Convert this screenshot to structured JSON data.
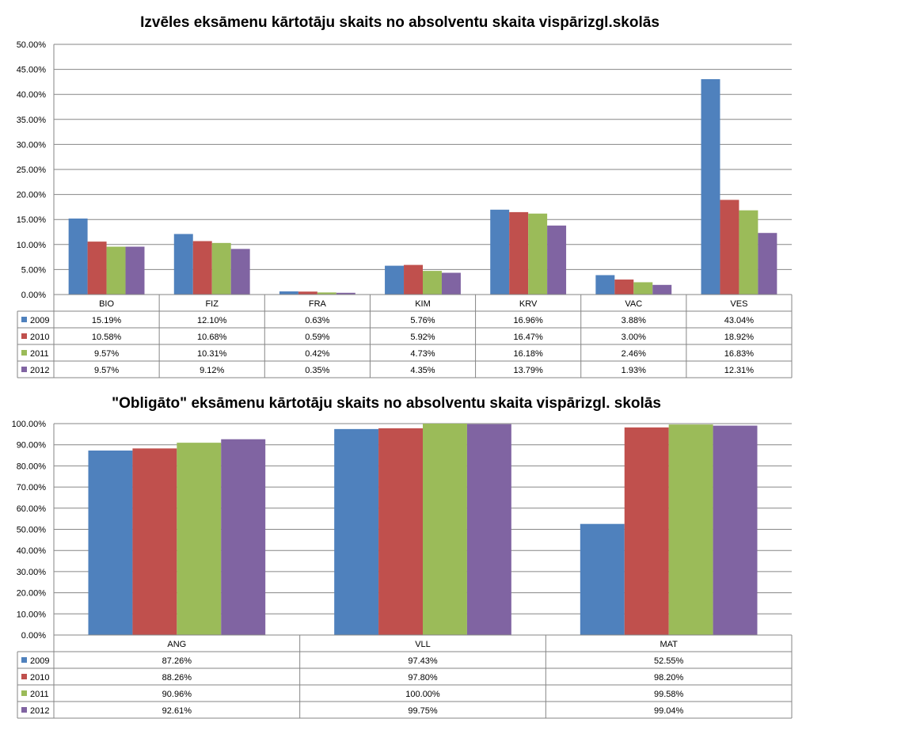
{
  "colors": {
    "2009": "#4f81bd",
    "2010": "#c0504d",
    "2011": "#9bbb59",
    "2012": "#8064a2",
    "grid": "#868686"
  },
  "chart_data": [
    {
      "type": "bar",
      "title": "Izvēles eksāmenu kārtotāju skaits no absolventu skaita vispārizgl.skolās",
      "categories": [
        "BIO",
        "FIZ",
        "FRA",
        "KIM",
        "KRV",
        "VAC",
        "VES"
      ],
      "ylim": [
        0,
        50
      ],
      "yticks": [
        "0.00%",
        "5.00%",
        "10.00%",
        "15.00%",
        "20.00%",
        "25.00%",
        "30.00%",
        "35.00%",
        "40.00%",
        "45.00%",
        "50.00%"
      ],
      "grid": true,
      "legend": "data-table",
      "series": [
        {
          "name": "2009",
          "values": [
            15.19,
            12.1,
            0.63,
            5.76,
            16.96,
            3.88,
            43.04
          ],
          "labels": [
            "15.19%",
            "12.10%",
            "0.63%",
            "5.76%",
            "16.96%",
            "3.88%",
            "43.04%"
          ]
        },
        {
          "name": "2010",
          "values": [
            10.58,
            10.68,
            0.59,
            5.92,
            16.47,
            3.0,
            18.92
          ],
          "labels": [
            "10.58%",
            "10.68%",
            "0.59%",
            "5.92%",
            "16.47%",
            "3.00%",
            "18.92%"
          ]
        },
        {
          "name": "2011",
          "values": [
            9.57,
            10.31,
            0.42,
            4.73,
            16.18,
            2.46,
            16.83
          ],
          "labels": [
            "9.57%",
            "10.31%",
            "0.42%",
            "4.73%",
            "16.18%",
            "2.46%",
            "16.83%"
          ]
        },
        {
          "name": "2012",
          "values": [
            9.57,
            9.12,
            0.35,
            4.35,
            13.79,
            1.93,
            12.31
          ],
          "labels": [
            "9.57%",
            "9.12%",
            "0.35%",
            "4.35%",
            "13.79%",
            "1.93%",
            "12.31%"
          ]
        }
      ]
    },
    {
      "type": "bar",
      "title": "\"Obligāto\" eksāmenu kārtotāju skaits no absolventu skaita vispārizgl. skolās",
      "categories": [
        "ANG",
        "VLL",
        "MAT"
      ],
      "ylim": [
        0,
        100
      ],
      "yticks": [
        "0.00%",
        "10.00%",
        "20.00%",
        "30.00%",
        "40.00%",
        "50.00%",
        "60.00%",
        "70.00%",
        "80.00%",
        "90.00%",
        "100.00%"
      ],
      "grid": true,
      "legend": "data-table",
      "series": [
        {
          "name": "2009",
          "values": [
            87.26,
            97.43,
            52.55
          ],
          "labels": [
            "87.26%",
            "97.43%",
            "52.55%"
          ]
        },
        {
          "name": "2010",
          "values": [
            88.26,
            97.8,
            98.2
          ],
          "labels": [
            "88.26%",
            "97.80%",
            "98.20%"
          ]
        },
        {
          "name": "2011",
          "values": [
            90.96,
            100.0,
            99.58
          ],
          "labels": [
            "90.96%",
            "100.00%",
            "99.58%"
          ]
        },
        {
          "name": "2012",
          "values": [
            92.61,
            99.75,
            99.04
          ],
          "labels": [
            "92.61%",
            "99.75%",
            "99.04%"
          ]
        }
      ]
    }
  ]
}
